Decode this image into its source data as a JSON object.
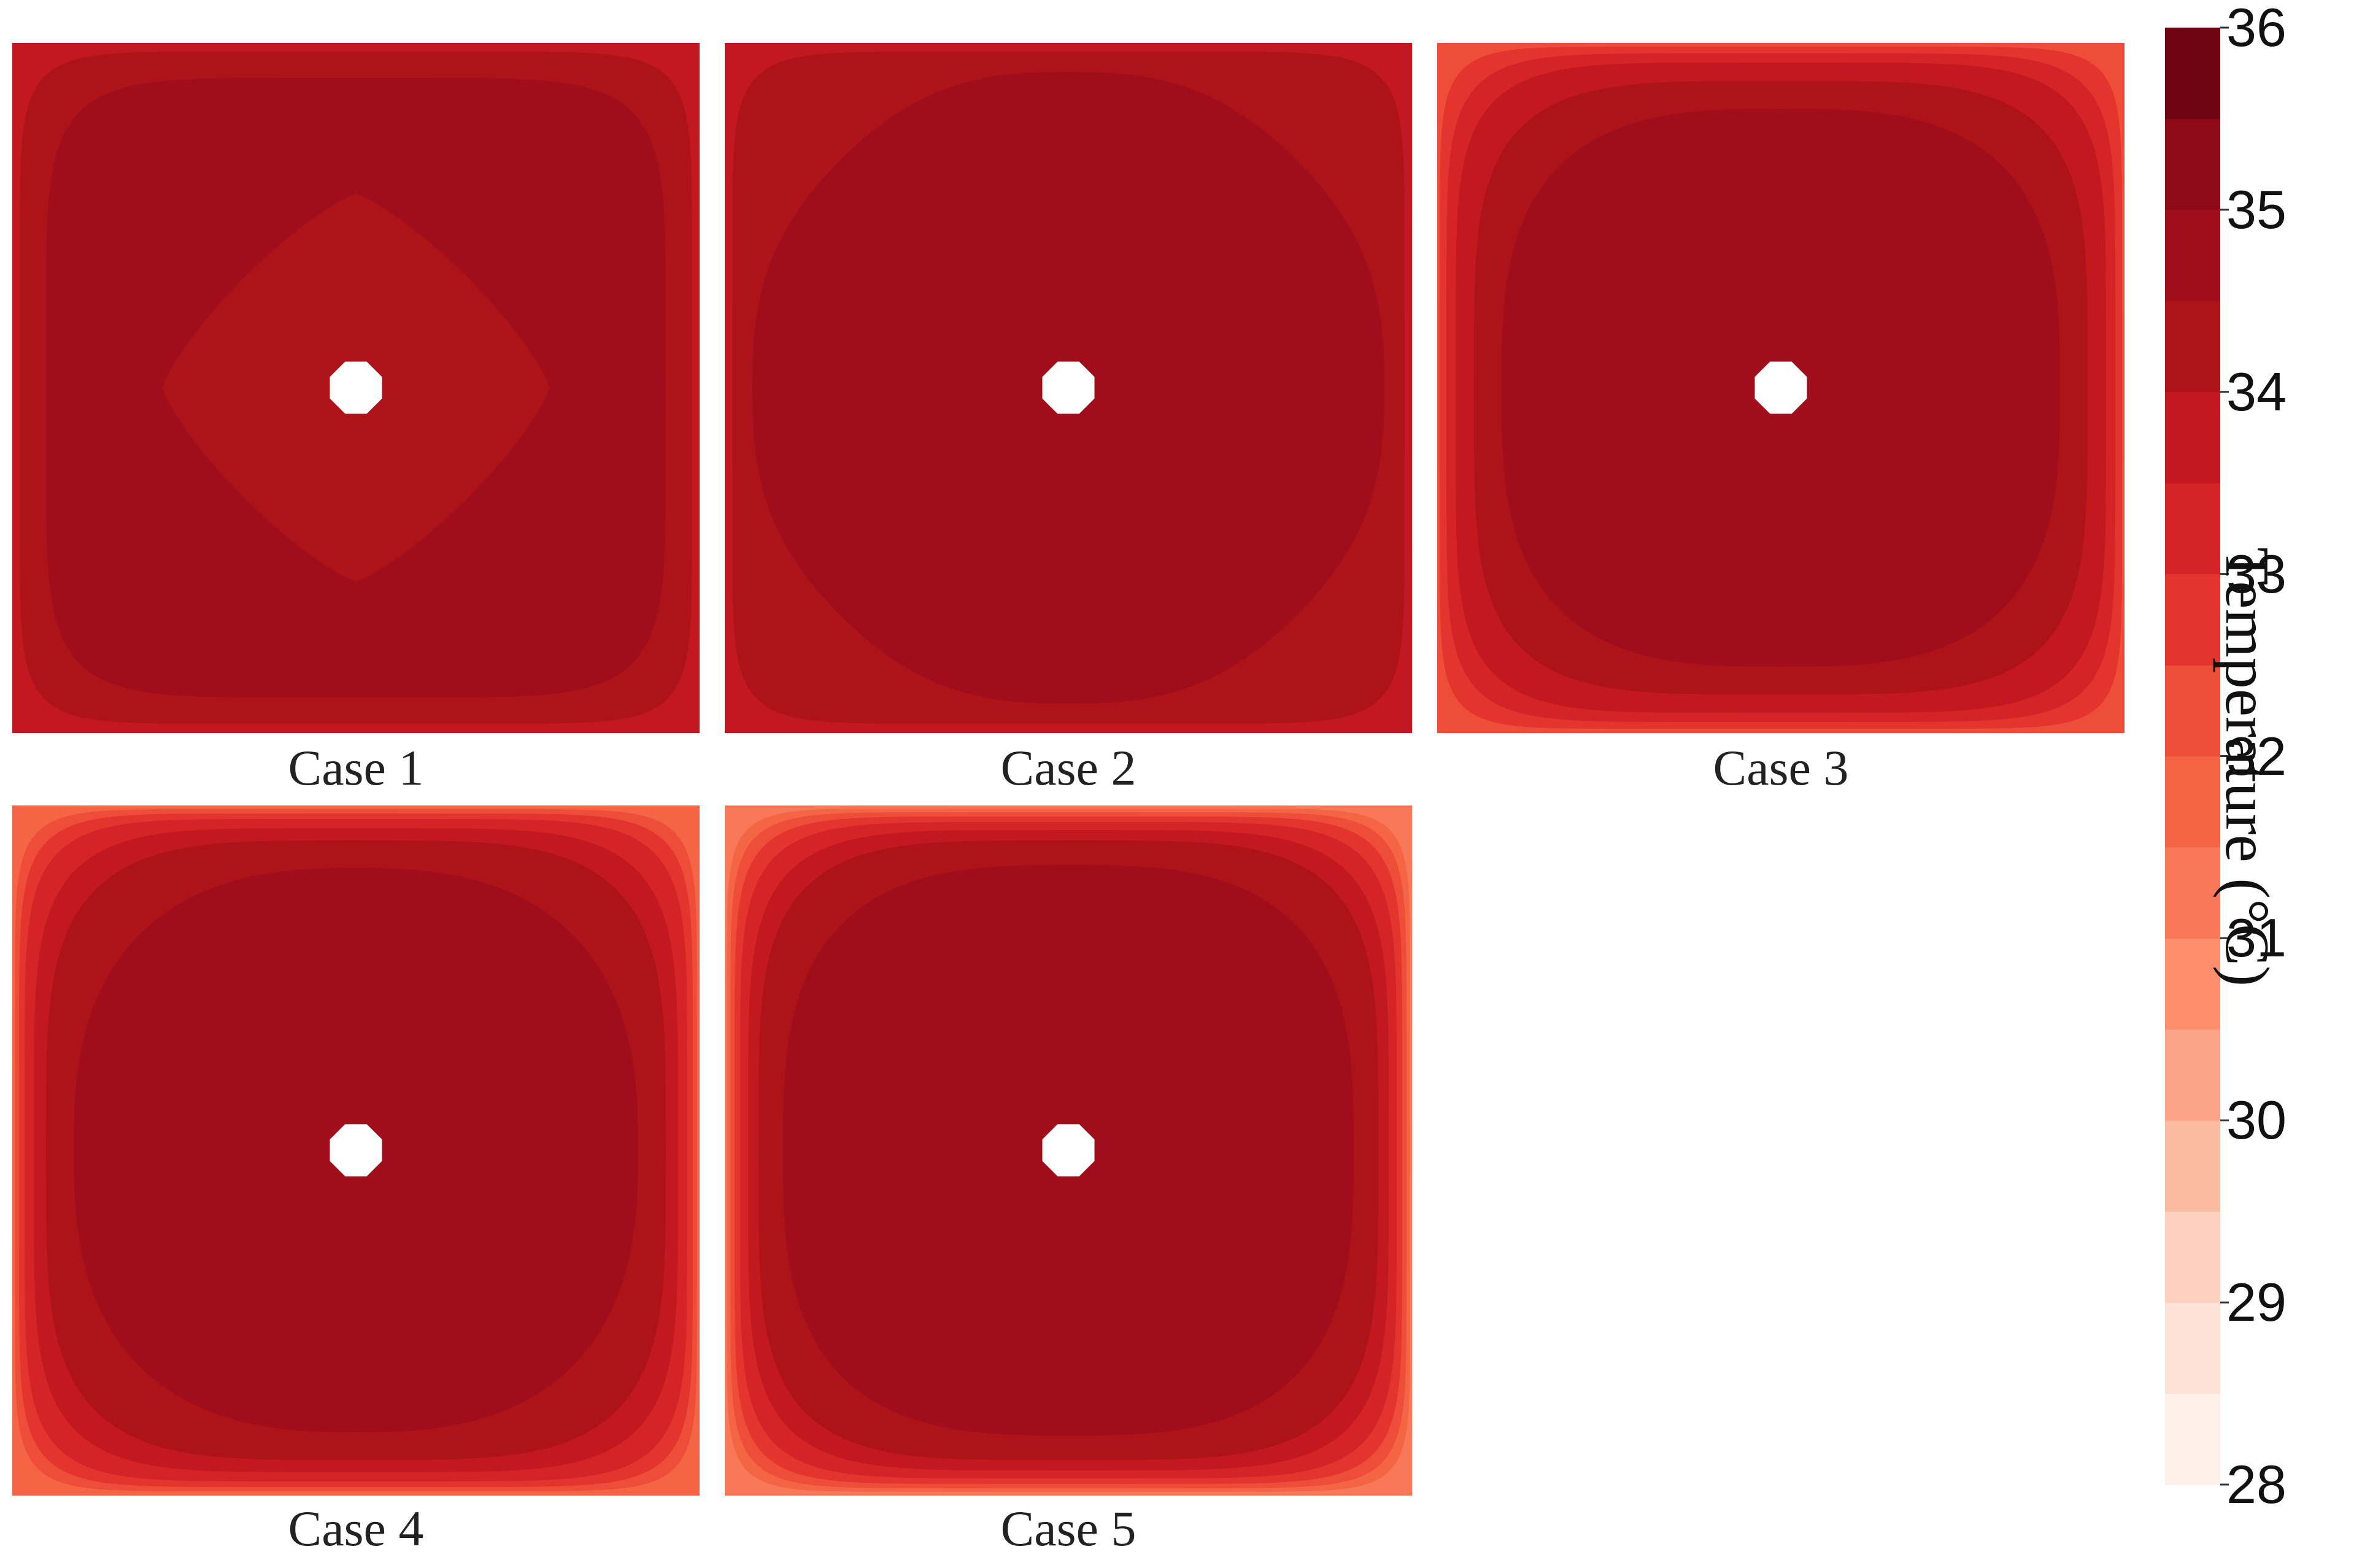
{
  "chart_data": {
    "type": "heatmap",
    "panels": [
      {
        "title": "Case 1",
        "levels": [
          {
            "temp_min": 33.5,
            "temp_max": 34.0
          },
          {
            "temp_min": 34.0,
            "temp_max": 34.5
          },
          {
            "temp_min": 34.5,
            "temp_max": 35.0
          },
          {
            "temp_min": 34.0,
            "temp_max": 34.5
          }
        ]
      },
      {
        "title": "Case 2",
        "levels": [
          {
            "temp_min": 33.5,
            "temp_max": 34.0
          },
          {
            "temp_min": 34.0,
            "temp_max": 34.5
          },
          {
            "temp_min": 34.5,
            "temp_max": 35.0
          }
        ]
      },
      {
        "title": "Case 3",
        "levels": [
          {
            "temp_min": 32.0,
            "temp_max": 32.5
          },
          {
            "temp_min": 32.5,
            "temp_max": 33.0
          },
          {
            "temp_min": 33.0,
            "temp_max": 33.5
          },
          {
            "temp_min": 33.5,
            "temp_max": 34.0
          },
          {
            "temp_min": 34.0,
            "temp_max": 34.5
          },
          {
            "temp_min": 34.5,
            "temp_max": 35.0
          }
        ]
      },
      {
        "title": "Case 4",
        "levels": [
          {
            "temp_min": 31.5,
            "temp_max": 32.0
          },
          {
            "temp_min": 32.0,
            "temp_max": 32.5
          },
          {
            "temp_min": 32.5,
            "temp_max": 33.0
          },
          {
            "temp_min": 33.0,
            "temp_max": 33.5
          },
          {
            "temp_min": 33.5,
            "temp_max": 34.0
          },
          {
            "temp_min": 34.0,
            "temp_max": 34.5
          },
          {
            "temp_min": 34.5,
            "temp_max": 35.0
          }
        ]
      },
      {
        "title": "Case 5",
        "levels": [
          {
            "temp_min": 31.0,
            "temp_max": 31.5
          },
          {
            "temp_min": 31.5,
            "temp_max": 32.0
          },
          {
            "temp_min": 32.0,
            "temp_max": 32.5
          },
          {
            "temp_min": 32.5,
            "temp_max": 33.0
          },
          {
            "temp_min": 33.0,
            "temp_max": 33.5
          },
          {
            "temp_min": 33.5,
            "temp_max": 34.0
          },
          {
            "temp_min": 34.0,
            "temp_max": 34.5
          },
          {
            "temp_min": 34.5,
            "temp_max": 35.0
          }
        ]
      }
    ],
    "colorbar": {
      "label": "Temperature (°C)",
      "range": [
        28,
        36
      ],
      "step": 0.5,
      "ticks": [
        36,
        35,
        34,
        33,
        32,
        31,
        30,
        29,
        28
      ],
      "colors": [
        "#fef0e9",
        "#fde2d7",
        "#fcd0bc",
        "#fbbba1",
        "#fca486",
        "#fc8e6e",
        "#f87858",
        "#f46546",
        "#ee4e39",
        "#e3352e",
        "#d42428",
        "#c21920",
        "#af131a",
        "#a00e1b",
        "#8e0a18",
        "#6e0511"
      ]
    },
    "xlabel": "",
    "ylabel": ""
  }
}
